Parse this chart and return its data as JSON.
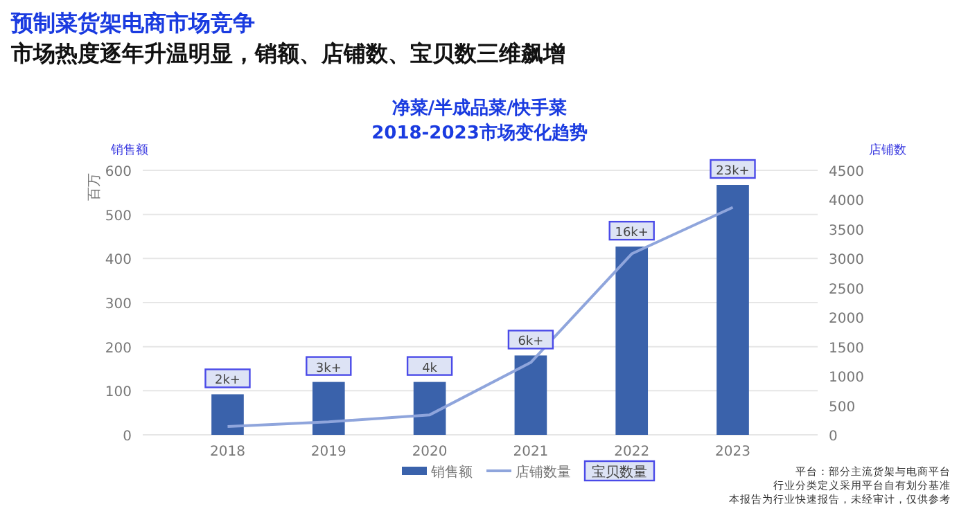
{
  "chart_data": {
    "type": "bar",
    "title": "预制菜货架电商市场竞争",
    "subtitle": "市场热度逐年升温明显，销额、店铺数、宝贝数三维飙增",
    "ylabel": "销售额",
    "y2label": "店铺数",
    "categories": [
      "2018",
      "2019",
      "2020",
      "2021",
      "2022",
      "2023"
    ],
    "series": [
      {
        "name": "销售额",
        "color": "#3a62ab",
        "values": [
          92,
          120,
          120,
          180,
          427,
          567
        ]
      },
      {
        "name": "店铺数量",
        "type": "line",
        "axis": "y2",
        "color": "#8fa5dc",
        "values": [
          140,
          220,
          340,
          1230,
          3080,
          3870
        ]
      }
    ],
    "ylim": [
      0,
      600
    ],
    "yticks": [
      0,
      100,
      200,
      300,
      400,
      500,
      600
    ],
    "y2lim": [
      0,
      4500
    ],
    "y2ticks": [
      0,
      500,
      1000,
      1500,
      2000,
      2500,
      3000,
      3500,
      4000,
      4500
    ],
    "grid": "y",
    "legend": "bottom",
    "marker": "none",
    "line_style": "solid",
    "annotations": [
      "净菜/半成品菜/快手菜",
      "2018-2023市场变化趋势",
      "百万",
      "宝贝数量",
      {
        "text": "2k+",
        "x": "2018",
        "y": 92
      },
      {
        "text": "3k+",
        "x": "2019",
        "y": 120
      },
      {
        "text": "4k",
        "x": "2020",
        "y": 120
      },
      {
        "text": "6k+",
        "x": "2021",
        "y": 180
      },
      {
        "text": "16k+",
        "x": "2022",
        "y": 427
      },
      {
        "text": "23k+",
        "x": "2023",
        "y": 567
      },
      "平台：部分主流货架与电商平台",
      "行业分类定义采用平台自有划分基准",
      "本报告为行业快速报告，未经审计，仅供参考"
    ]
  }
}
